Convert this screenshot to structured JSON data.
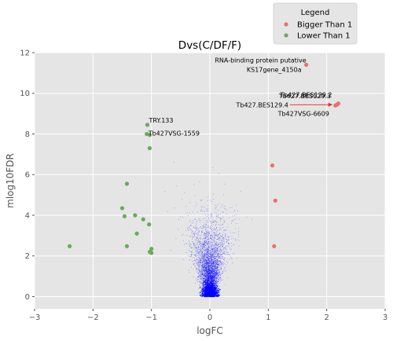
{
  "chart_data": {
    "type": "scatter",
    "title": "Dvs(C/DF/F)",
    "xlabel": "logFC",
    "ylabel": "mlog10FDR",
    "xlim": [
      -3,
      3
    ],
    "ylim": [
      -0.6,
      12
    ],
    "xticks": [
      -3,
      -2,
      -1,
      0,
      1,
      2,
      3
    ],
    "yticks": [
      0,
      2,
      4,
      6,
      8,
      10,
      12
    ],
    "xtick_labels": [
      "−3",
      "−2",
      "−1",
      "0",
      "1",
      "2",
      "3"
    ],
    "ytick_labels": [
      "0",
      "2",
      "4",
      "6",
      "8",
      "10",
      "12"
    ],
    "grid": true,
    "background": "#e5e5e5",
    "legend": {
      "title": "Legend",
      "placement": "above top-right",
      "entries": [
        {
          "label": "Bigger Than 1",
          "color": "#e8726a"
        },
        {
          "label": "Lower Than 1",
          "color": "#6aaa5a"
        }
      ]
    },
    "series": [
      {
        "name": "Bigger Than 1",
        "color": "#e8726a",
        "points": [
          {
            "x": 1.65,
            "y": 11.4
          },
          {
            "x": 2.2,
            "y": 9.5
          },
          {
            "x": 2.18,
            "y": 9.45
          },
          {
            "x": 2.15,
            "y": 9.4
          },
          {
            "x": 1.07,
            "y": 6.45
          },
          {
            "x": 1.12,
            "y": 4.72
          },
          {
            "x": 1.1,
            "y": 2.48
          }
        ]
      },
      {
        "name": "Lower Than 1",
        "color": "#6aaa5a",
        "points": [
          {
            "x": -1.07,
            "y": 8.45
          },
          {
            "x": -1.08,
            "y": 8.0
          },
          {
            "x": -1.03,
            "y": 7.95
          },
          {
            "x": -1.03,
            "y": 7.3
          },
          {
            "x": -1.42,
            "y": 5.55
          },
          {
            "x": -1.5,
            "y": 4.35
          },
          {
            "x": -1.46,
            "y": 3.95
          },
          {
            "x": -1.28,
            "y": 4.0
          },
          {
            "x": -1.14,
            "y": 3.8
          },
          {
            "x": -1.04,
            "y": 3.55
          },
          {
            "x": -1.25,
            "y": 3.1
          },
          {
            "x": -2.4,
            "y": 2.48
          },
          {
            "x": -1.42,
            "y": 2.48
          },
          {
            "x": -1.0,
            "y": 2.35
          },
          {
            "x": -1.03,
            "y": 2.2
          },
          {
            "x": -1.0,
            "y": 2.15
          }
        ]
      },
      {
        "name": "",
        "color": "#0000ff",
        "style": "background cloud of thousands of small non-significant points"
      }
    ],
    "annotations": [
      {
        "text": "RNA-binding protein  putative",
        "x": 1.65,
        "y": 11.4
      },
      {
        "text": "KS17gene_4150a",
        "x": 1.65,
        "y": 11.4
      },
      {
        "text": "Tb427.BES129.2",
        "x": 2.2,
        "y": 9.5
      },
      {
        "text": "Tb427.BES129.3",
        "x": 2.18,
        "y": 9.45
      },
      {
        "text": "Tb427.BES129.4",
        "x": 2.15,
        "y": 9.4
      },
      {
        "text": "Tb427VSG-6609",
        "x": 2.15,
        "y": 9.4
      },
      {
        "text": "TRY.133",
        "x": -1.07,
        "y": 8.45
      },
      {
        "text": "Tb427VSG-1559",
        "x": -1.08,
        "y": 8.0
      }
    ]
  }
}
